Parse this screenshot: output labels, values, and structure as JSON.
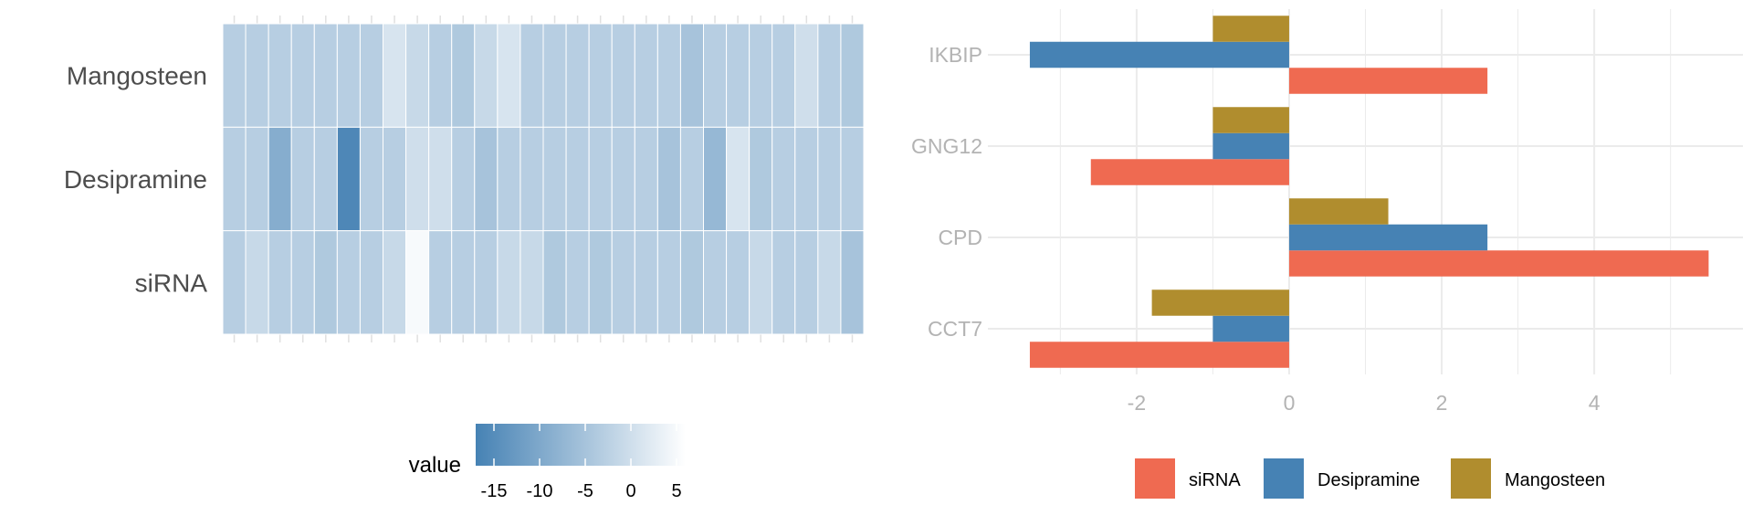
{
  "chart_data": [
    {
      "type": "heatmap",
      "title": "",
      "rows": [
        "Mangosteen",
        "Desipramine",
        "siRNA"
      ],
      "n_columns": 28,
      "values": [
        [
          -3,
          -3,
          -3,
          -3,
          -3,
          -3,
          -3,
          1,
          -1,
          -3,
          -4,
          -1,
          1,
          -3,
          -3,
          -3,
          -3,
          -3,
          -3,
          -3,
          -5,
          -3,
          -3,
          -3,
          -3,
          0,
          -3,
          -4
        ],
        [
          -3,
          -3,
          -9,
          -3,
          -3,
          -16,
          -3,
          -3,
          0,
          0,
          -3,
          -5,
          -3,
          -3,
          -3,
          -3,
          -3,
          -3,
          -3,
          -5,
          -3,
          -7,
          1,
          -4,
          -3,
          -3,
          -3,
          -3
        ],
        [
          -3,
          -1,
          -3,
          -3,
          -4,
          -3,
          -3,
          -1,
          5,
          -3,
          -3,
          -3,
          -1,
          -1,
          -4,
          -3,
          -4,
          -3,
          -3,
          -3,
          -4,
          -3,
          -3,
          -1,
          -3,
          -3,
          -1,
          -5
        ]
      ],
      "legend": {
        "title": "value",
        "min": -17,
        "max": 6,
        "ticks": [
          -15,
          -10,
          -5,
          0,
          5
        ],
        "low_color": "#4682b4",
        "high_color": "#ffffff"
      },
      "colors": {
        "tile_border": "#ffffff",
        "row_label": "#4d4d4d"
      }
    },
    {
      "type": "bar",
      "orientation": "horizontal",
      "title": "",
      "xlabel": "",
      "ylabel": "",
      "categories": [
        "IKBIP",
        "GNG12",
        "CPD",
        "CCT7"
      ],
      "series": [
        {
          "name": "siRNA",
          "color": "#ef6a51",
          "values": [
            2.6,
            -2.6,
            5.5,
            -3.4
          ]
        },
        {
          "name": "Desipramine",
          "color": "#4682b4",
          "values": [
            -3.4,
            -1.0,
            2.6,
            -1.0
          ]
        },
        {
          "name": "Mangosteen",
          "color": "#b08d2e",
          "values": [
            -1.0,
            -1.0,
            1.3,
            -1.8
          ]
        }
      ],
      "xlim": [
        -3.95,
        5.95
      ],
      "xticks": [
        -2,
        0,
        2,
        4
      ],
      "grid": true,
      "legend_position": "bottom",
      "colors": {
        "grid": "#ebebeb",
        "axis_text": "#b3b3b3"
      }
    }
  ]
}
